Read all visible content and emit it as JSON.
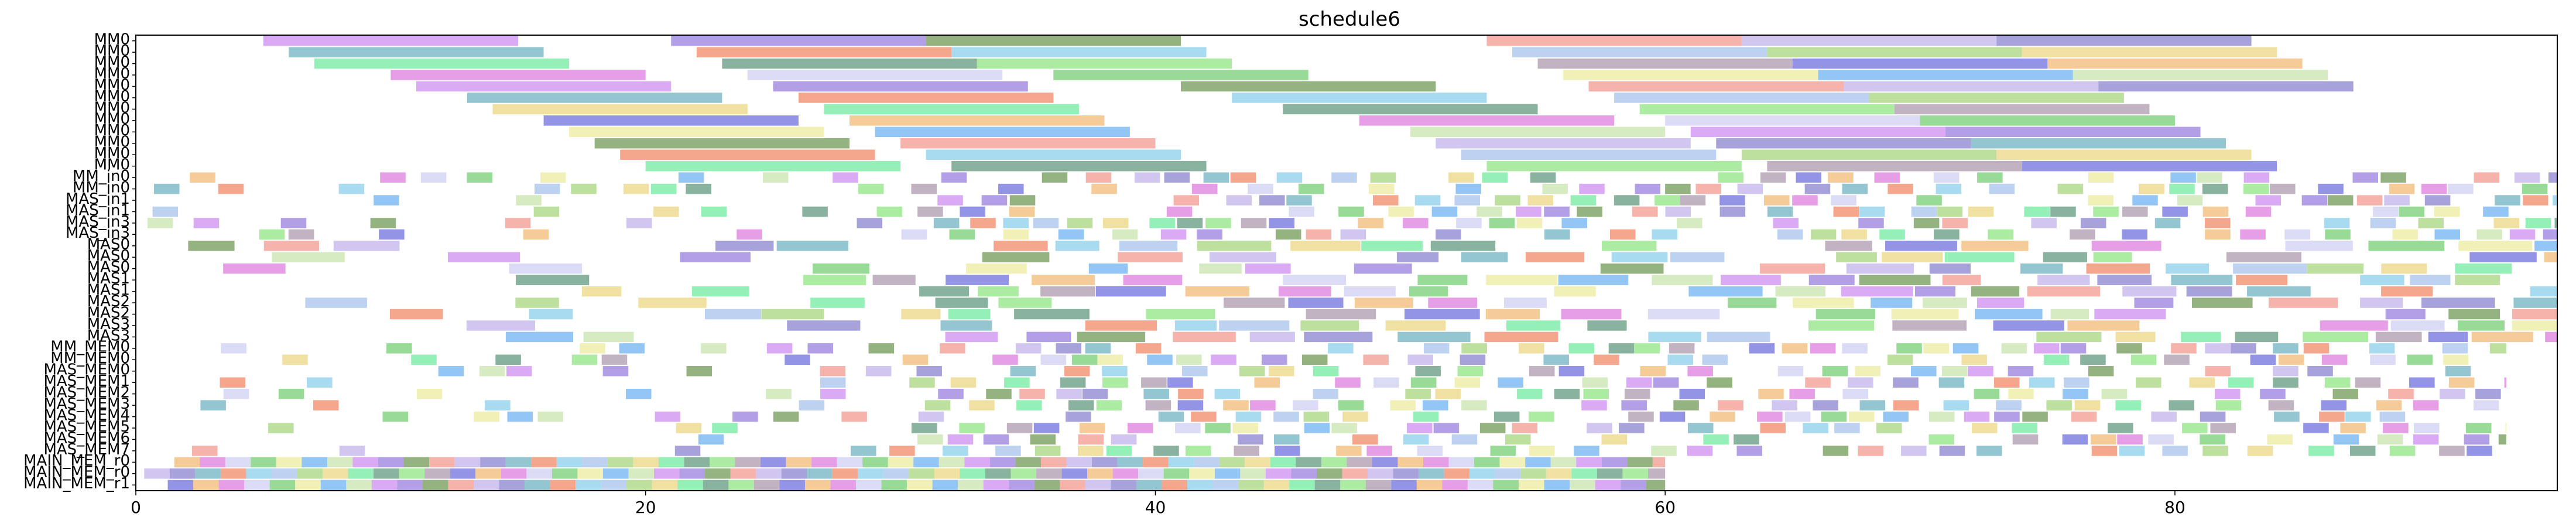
{
  "chart_data": {
    "type": "gantt",
    "title": "schedule6",
    "xlabel": "",
    "ylabel": "",
    "xlim": [
      0,
      95
    ],
    "x_ticks": [
      0,
      20,
      40,
      60,
      80
    ],
    "rows": [
      "MM0",
      "MM0",
      "MM0",
      "MM0",
      "MM0",
      "MM0",
      "MM0",
      "MM0",
      "MM0",
      "MM0",
      "MM0",
      "MM0",
      "MM_in0",
      "MM_in0",
      "MAS_in1",
      "MAS_in1",
      "MAS_in3",
      "MAS_in3",
      "MAS0",
      "MAS0",
      "MAS0",
      "MAS1",
      "MAS1",
      "MAS2",
      "MAS2",
      "MAS3",
      "MAS3",
      "MM_MEM0",
      "MM_MEM0",
      "MAS_MEM0",
      "MAS_MEM1",
      "MAS_MEM2",
      "MAS_MEM3",
      "MAS_MEM4",
      "MAS_MEM5",
      "MAS_MEM6",
      "MAS_MEM7",
      "MAIN_MEM_r0",
      "MAIN_MEM_r0",
      "MAIN_MEM_r1"
    ],
    "grid": false,
    "bar_colors_note": "random pastel/saturated colors, semi-transparent",
    "series": [
      {
        "row": 0,
        "bars": [
          [
            5,
            15
          ],
          [
            21,
            31
          ],
          [
            31,
            41
          ],
          [
            53,
            63
          ],
          [
            63,
            73
          ],
          [
            73,
            83
          ]
        ]
      },
      {
        "row": 1,
        "bars": [
          [
            6,
            16
          ],
          [
            22,
            32
          ],
          [
            32,
            42
          ],
          [
            54,
            64
          ],
          [
            64,
            74
          ],
          [
            74,
            84
          ]
        ]
      },
      {
        "row": 2,
        "bars": [
          [
            7,
            17
          ],
          [
            23,
            33
          ],
          [
            33,
            43
          ],
          [
            55,
            65
          ],
          [
            65,
            75
          ],
          [
            75,
            85
          ]
        ]
      },
      {
        "row": 3,
        "bars": [
          [
            10,
            20
          ],
          [
            24,
            34
          ],
          [
            36,
            46
          ],
          [
            56,
            66
          ],
          [
            66,
            76
          ],
          [
            76,
            86
          ]
        ]
      },
      {
        "row": 4,
        "bars": [
          [
            11,
            21
          ],
          [
            25,
            35
          ],
          [
            41,
            51
          ],
          [
            57,
            67
          ],
          [
            67,
            77
          ],
          [
            77,
            87
          ]
        ]
      },
      {
        "row": 5,
        "bars": [
          [
            13,
            23
          ],
          [
            26,
            36
          ],
          [
            43,
            53
          ],
          [
            58,
            68
          ],
          [
            68,
            78
          ]
        ]
      },
      {
        "row": 6,
        "bars": [
          [
            14,
            24
          ],
          [
            27,
            37
          ],
          [
            45,
            55
          ],
          [
            59,
            69
          ],
          [
            69,
            79
          ]
        ]
      },
      {
        "row": 7,
        "bars": [
          [
            16,
            26
          ],
          [
            28,
            38
          ],
          [
            48,
            58
          ],
          [
            60,
            70
          ],
          [
            70,
            80
          ]
        ]
      },
      {
        "row": 8,
        "bars": [
          [
            17,
            27
          ],
          [
            29,
            39
          ],
          [
            50,
            60
          ],
          [
            61,
            71
          ],
          [
            71,
            81
          ]
        ]
      },
      {
        "row": 9,
        "bars": [
          [
            18,
            28
          ],
          [
            30,
            40
          ],
          [
            51,
            61
          ],
          [
            62,
            72
          ],
          [
            72,
            82
          ]
        ]
      },
      {
        "row": 10,
        "bars": [
          [
            19,
            29
          ],
          [
            31,
            41
          ],
          [
            52,
            62
          ],
          [
            63,
            73
          ],
          [
            73,
            83
          ]
        ]
      },
      {
        "row": 11,
        "bars": [
          [
            20,
            30
          ],
          [
            32,
            42
          ],
          [
            53,
            63
          ],
          [
            64,
            74
          ],
          [
            74,
            84
          ]
        ]
      }
    ]
  },
  "colors": {
    "background": "#ffffff",
    "axis": "#000000",
    "palette": [
      "#c77cf0",
      "#8a6bd8",
      "#5a8a3c",
      "#f08a80",
      "#b8a8e8",
      "#7a70c8",
      "#5aa8b8",
      "#f07850",
      "#7ac8e8",
      "#9ab8e8",
      "#9ad06a",
      "#e8d070",
      "#5ae890",
      "#4a8a6a",
      "#80e070",
      "#a08aa0",
      "#5a5ad8",
      "#f0b060",
      "#d86ad8",
      "#c8c8f0",
      "#60c860",
      "#e8e890",
      "#5aa8f0",
      "#c0e0a0"
    ]
  }
}
